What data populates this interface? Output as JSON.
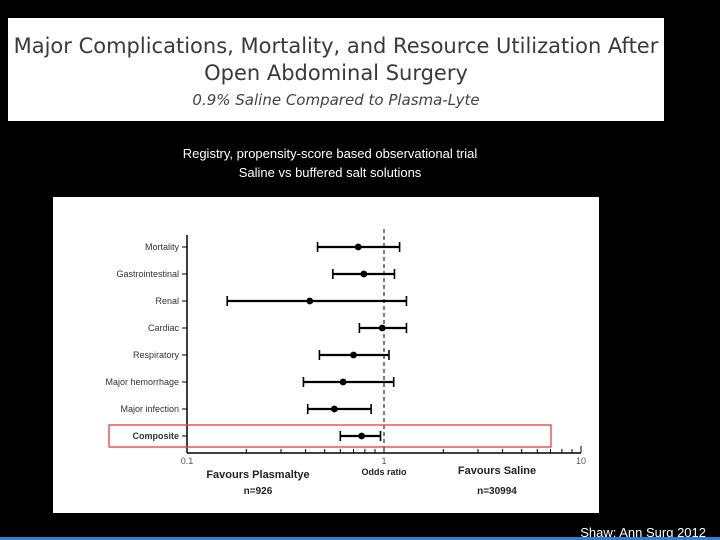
{
  "title": {
    "line1": "Major Complications, Mortality, and Resource Utilization After",
    "line2": "Open Abdominal Surgery",
    "subtitle": "0.9% Saline Compared to Plasma-Lyte"
  },
  "description": {
    "line1": "Registry, propensity-score based observational trial",
    "line2": "Saline vs buffered salt solutions"
  },
  "citation": "Shaw: Ann Surg 2012",
  "colors": {
    "highlight": "#e04040",
    "background": "#000000",
    "accent": "#2e7fd0"
  },
  "chart_data": {
    "type": "scatter",
    "subtype": "forest-plot",
    "x_scale": "log",
    "xlim": [
      0.1,
      10
    ],
    "x_ticks": [
      "0.1",
      "1",
      "10"
    ],
    "xlabel": "Odds ratio",
    "reference_line": 1,
    "categories": [
      "Mortality",
      "Gastrointestinal",
      "Renal",
      "Cardiac",
      "Respiratory",
      "Major hemorrhage",
      "Major infection",
      "Composite"
    ],
    "estimate": [
      0.74,
      0.79,
      0.42,
      0.98,
      0.7,
      0.62,
      0.56,
      0.77
    ],
    "ci_lower": [
      0.46,
      0.55,
      0.16,
      0.75,
      0.47,
      0.39,
      0.41,
      0.6
    ],
    "ci_upper": [
      1.2,
      1.13,
      1.3,
      1.3,
      1.06,
      1.12,
      0.86,
      0.96
    ],
    "highlighted": "Composite",
    "left_annotation": {
      "label": "Favours Plasmaltye",
      "n": "n=926"
    },
    "right_annotation": {
      "label": "Favours Saline",
      "n": "n=30994"
    }
  }
}
